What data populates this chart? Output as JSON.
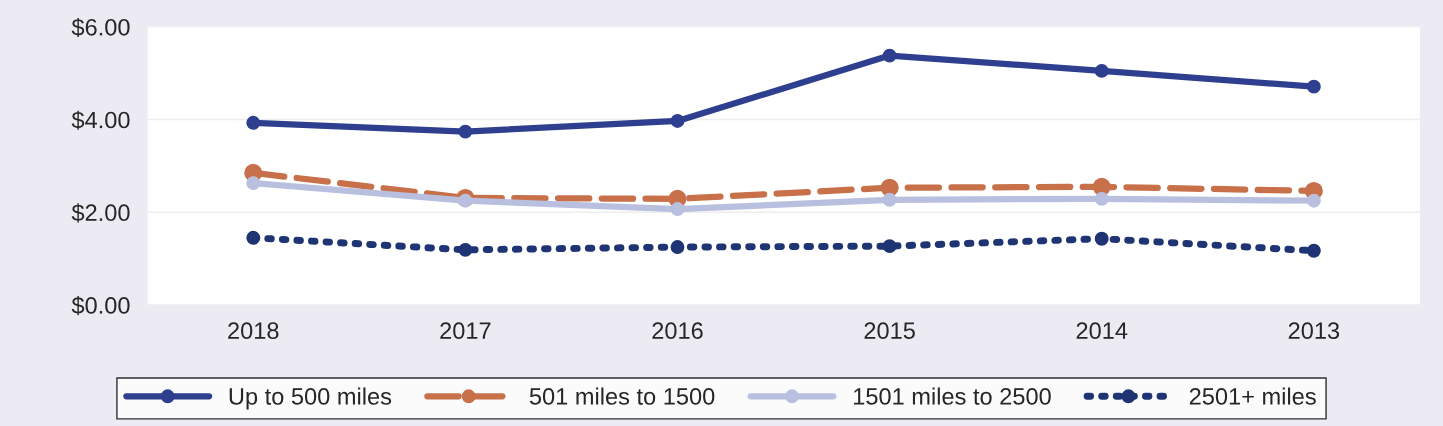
{
  "chart_data": {
    "type": "line",
    "categories": [
      "2018",
      "2017",
      "2016",
      "2015",
      "2014",
      "2013"
    ],
    "series": [
      {
        "name": "Up to 500 miles",
        "color": "#2e3f8f",
        "line_style": "solid",
        "values": [
          3.93,
          3.74,
          3.97,
          5.38,
          5.05,
          4.71
        ]
      },
      {
        "name": "501 miles to 1500",
        "color": "#c8704a",
        "line_style": "dashed",
        "values": [
          2.85,
          2.31,
          2.29,
          2.53,
          2.55,
          2.46
        ]
      },
      {
        "name": "1501 miles to 2500",
        "color": "#b9bfdf",
        "line_style": "solid",
        "values": [
          2.63,
          2.25,
          2.07,
          2.27,
          2.29,
          2.25
        ]
      },
      {
        "name": "2501+ miles",
        "color": "#1f3473",
        "line_style": "dotted",
        "values": [
          1.45,
          1.19,
          1.25,
          1.27,
          1.43,
          1.17
        ]
      }
    ],
    "ylim": [
      0,
      6
    ],
    "yticks": [
      {
        "value": 0,
        "label": "$0.00"
      },
      {
        "value": 2,
        "label": "$2.00"
      },
      {
        "value": 4,
        "label": "$4.00"
      },
      {
        "value": 6,
        "label": "$6.00"
      }
    ],
    "grid": "y",
    "legend": "bottom",
    "marker": "circle"
  }
}
